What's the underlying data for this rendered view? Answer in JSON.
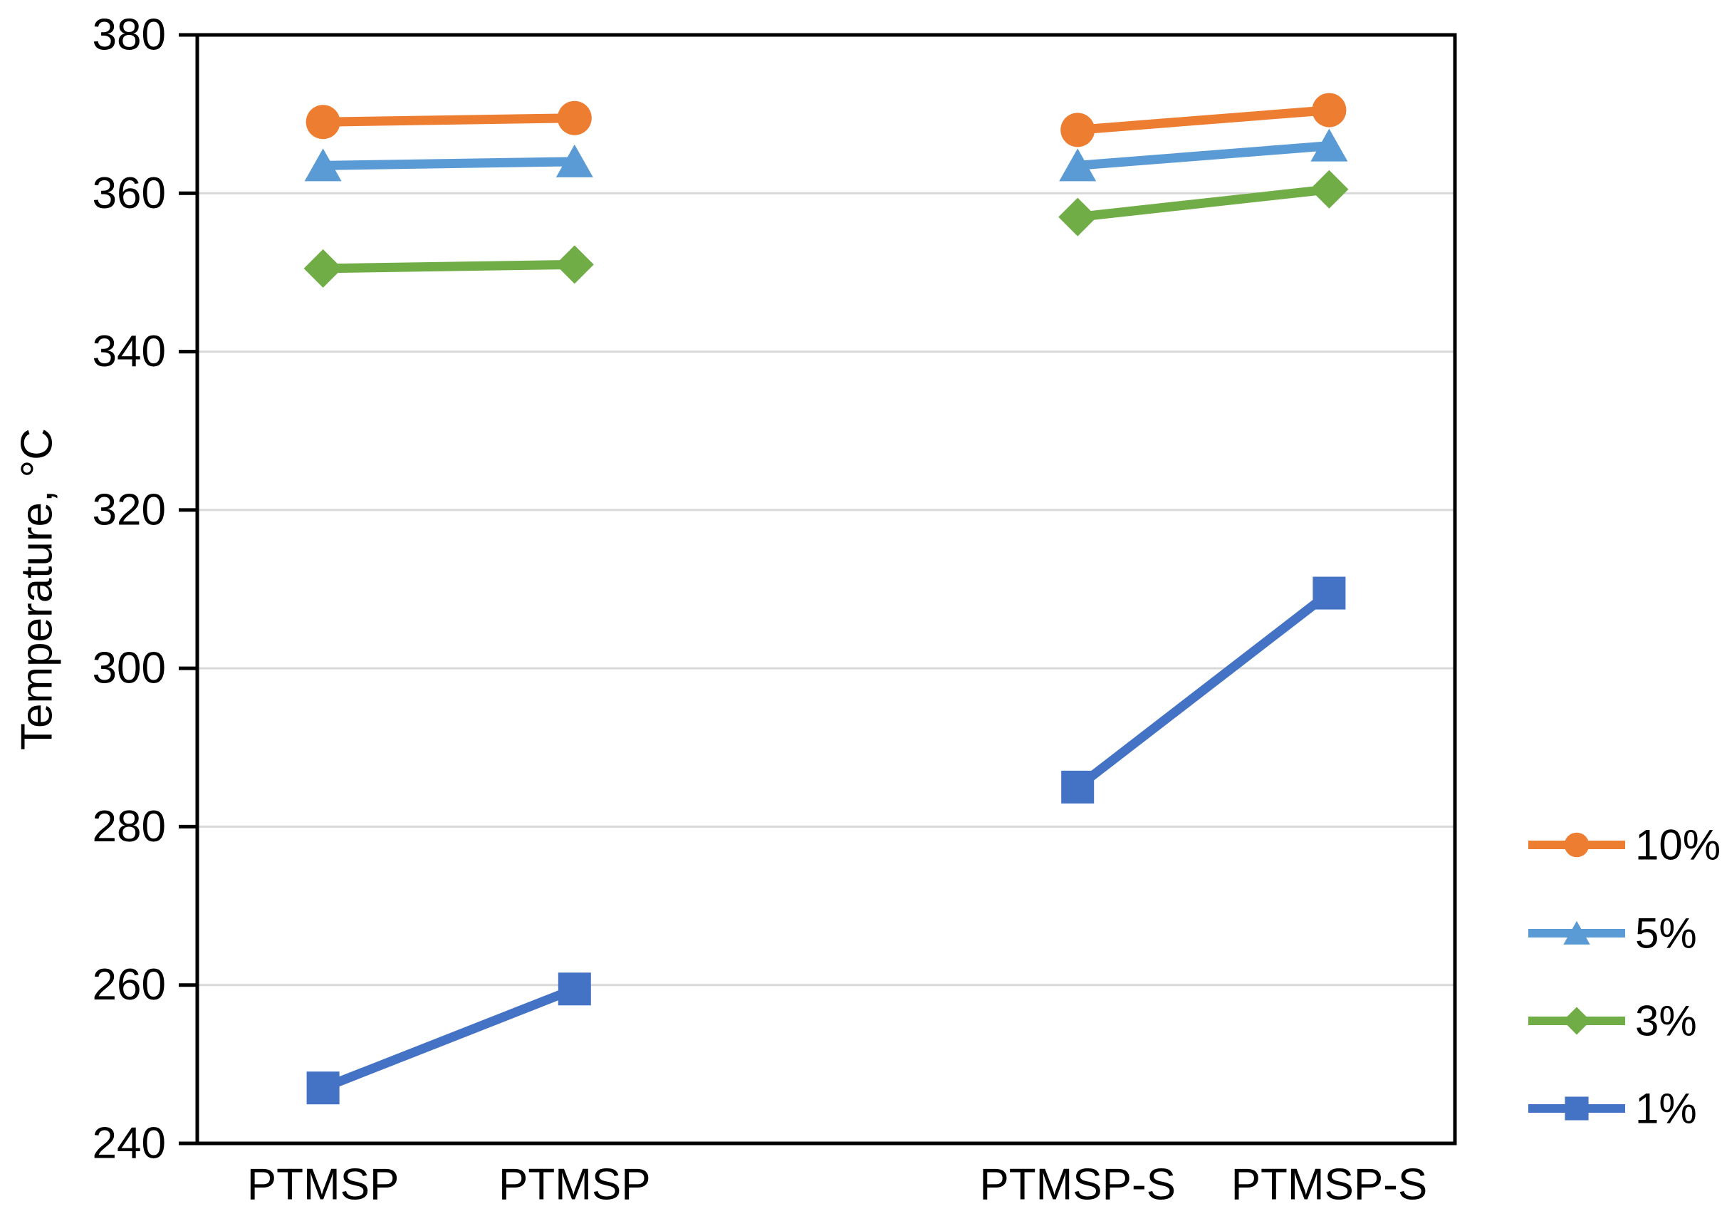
{
  "chart_data": {
    "type": "line",
    "title": "",
    "xlabel": "",
    "ylabel": "Temperature, °C",
    "ylim": [
      240,
      380
    ],
    "ytick_step": 20,
    "yticks": [
      380,
      360,
      340,
      320,
      300,
      280,
      260,
      240
    ],
    "categories": [
      "PTMSP",
      "PTMSP",
      "",
      "PTMSP-S",
      "PTMSP-S"
    ],
    "grid": true,
    "legend_position": "right",
    "series": [
      {
        "name": "10%",
        "color": "#ED7D31",
        "marker": "circle",
        "values": [
          369,
          369.5,
          null,
          368,
          370.5
        ]
      },
      {
        "name": "5%",
        "color": "#5B9BD5",
        "marker": "triangle",
        "values": [
          363.5,
          364,
          null,
          363.5,
          366
        ]
      },
      {
        "name": "3%",
        "color": "#70AD47",
        "marker": "diamond",
        "values": [
          350.5,
          351,
          null,
          357,
          360.5
        ]
      },
      {
        "name": "1%",
        "color": "#4472C4",
        "marker": "square",
        "values": [
          247,
          259.5,
          null,
          285,
          309.5
        ]
      }
    ]
  },
  "colors": {
    "axis": "#000000",
    "gridline": "#D9D9D9",
    "background": "#FFFFFF"
  }
}
